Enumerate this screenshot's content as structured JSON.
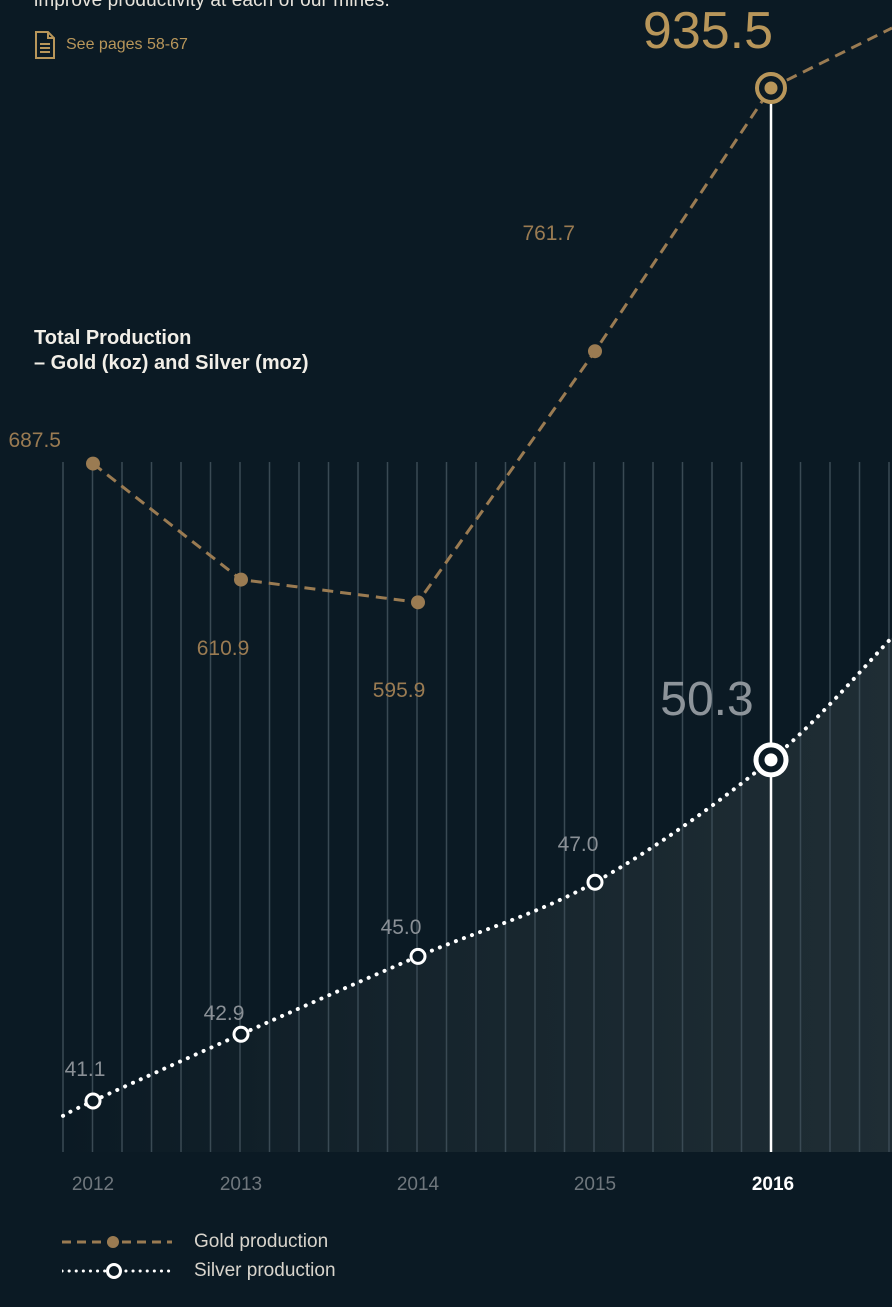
{
  "intro_text": "improve productivity at each of our mines.",
  "see_pages": {
    "label": "See pages 58-67",
    "icon": "document-icon"
  },
  "chart_title": {
    "line1": "Total Production",
    "line2": "– Gold (koz) and Silver (moz)"
  },
  "colors": {
    "background": "#0b1a24",
    "gold": "#9a7b52",
    "gold_highlight": "#b8965a",
    "silver": "#ffffff",
    "gridline": "#3a4a54",
    "label_gray": "#8a9096",
    "area_fill": "#1f2d34"
  },
  "chart_data": {
    "type": "line",
    "title": "Total Production – Gold (koz) and Silver (moz)",
    "categories": [
      "2012",
      "2013",
      "2014",
      "2015",
      "2016"
    ],
    "highlight_category": "2016",
    "series": [
      {
        "name": "Gold production",
        "unit": "koz",
        "style": "dashed",
        "values": [
          687.5,
          610.9,
          595.9,
          761.7,
          935.5
        ]
      },
      {
        "name": "Silver production",
        "unit": "moz",
        "style": "dotted",
        "values": [
          41.1,
          42.9,
          45.0,
          47.0,
          50.3
        ]
      }
    ],
    "labels": {
      "gold": [
        "687.5",
        "610.9",
        "595.9",
        "761.7",
        "935.5"
      ],
      "silver": [
        "41.1",
        "42.9",
        "45.0",
        "47.0",
        "50.3"
      ]
    },
    "grid": true,
    "legend_position": "bottom-left"
  },
  "legend": [
    {
      "label": "Gold production",
      "icon": "gold-legend-icon"
    },
    {
      "label": "Silver production",
      "icon": "silver-legend-icon"
    }
  ]
}
